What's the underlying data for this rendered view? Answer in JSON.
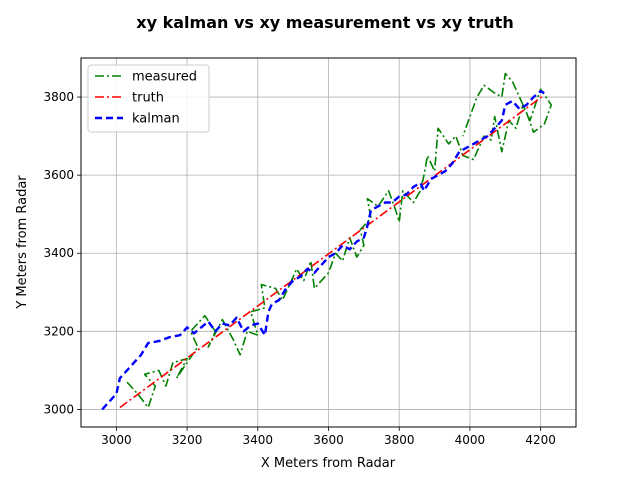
{
  "chart_data": {
    "type": "line",
    "title": "xy kalman vs xy measurement vs xy truth",
    "xlabel": "X Meters from Radar",
    "ylabel": "Y Meters from Radar",
    "xlim": [
      2900,
      4300
    ],
    "ylim": [
      2955,
      3900
    ],
    "xticks": [
      3000,
      3200,
      3400,
      3600,
      3800,
      4000,
      4200
    ],
    "yticks": [
      3000,
      3200,
      3400,
      3600,
      3800
    ],
    "grid": true,
    "legend_position": "upper-left",
    "series": [
      {
        "name": "measured",
        "color": "#008000",
        "linestyle": "dashdot",
        "points": [
          [
            3030,
            3070
          ],
          [
            3060,
            3040
          ],
          [
            3090,
            3005
          ],
          [
            3110,
            3060
          ],
          [
            3080,
            3090
          ],
          [
            3120,
            3100
          ],
          [
            3140,
            3060
          ],
          [
            3160,
            3120
          ],
          [
            3200,
            3130
          ],
          [
            3170,
            3080
          ],
          [
            3230,
            3160
          ],
          [
            3210,
            3200
          ],
          [
            3250,
            3240
          ],
          [
            3280,
            3200
          ],
          [
            3260,
            3160
          ],
          [
            3300,
            3230
          ],
          [
            3330,
            3180
          ],
          [
            3350,
            3140
          ],
          [
            3370,
            3200
          ],
          [
            3400,
            3190
          ],
          [
            3380,
            3250
          ],
          [
            3420,
            3260
          ],
          [
            3410,
            3320
          ],
          [
            3450,
            3310
          ],
          [
            3470,
            3280
          ],
          [
            3490,
            3320
          ],
          [
            3510,
            3360
          ],
          [
            3530,
            3330
          ],
          [
            3550,
            3380
          ],
          [
            3560,
            3310
          ],
          [
            3600,
            3350
          ],
          [
            3620,
            3400
          ],
          [
            3640,
            3380
          ],
          [
            3660,
            3440
          ],
          [
            3680,
            3390
          ],
          [
            3700,
            3420
          ],
          [
            3690,
            3460
          ],
          [
            3720,
            3490
          ],
          [
            3710,
            3540
          ],
          [
            3740,
            3520
          ],
          [
            3770,
            3560
          ],
          [
            3790,
            3510
          ],
          [
            3800,
            3480
          ],
          [
            3810,
            3560
          ],
          [
            3840,
            3530
          ],
          [
            3860,
            3560
          ],
          [
            3870,
            3600
          ],
          [
            3880,
            3650
          ],
          [
            3900,
            3610
          ],
          [
            3910,
            3720
          ],
          [
            3940,
            3680
          ],
          [
            3960,
            3700
          ],
          [
            3980,
            3650
          ],
          [
            4010,
            3640
          ],
          [
            4040,
            3700
          ],
          [
            4060,
            3690
          ],
          [
            4070,
            3750
          ],
          [
            4090,
            3660
          ],
          [
            4110,
            3740
          ],
          [
            4130,
            3720
          ],
          [
            4150,
            3780
          ],
          [
            4170,
            3740
          ],
          [
            4200,
            3820
          ],
          [
            4230,
            3780
          ],
          [
            4210,
            3730
          ],
          [
            4180,
            3710
          ],
          [
            4160,
            3760
          ],
          [
            4120,
            3840
          ],
          [
            4100,
            3860
          ],
          [
            4090,
            3800
          ],
          [
            4070,
            3810
          ],
          [
            4040,
            3830
          ],
          [
            4020,
            3800
          ],
          [
            4000,
            3750
          ],
          [
            3980,
            3700
          ]
        ]
      },
      {
        "name": "truth",
        "color": "#ff0000",
        "linestyle": "dashdot",
        "points": [
          [
            3010,
            3005
          ],
          [
            4210,
            3805
          ]
        ]
      },
      {
        "name": "kalman",
        "color": "#0000ff",
        "linestyle": "dashed",
        "points": [
          [
            2960,
            3000
          ],
          [
            3000,
            3040
          ],
          [
            3010,
            3080
          ],
          [
            3040,
            3110
          ],
          [
            3070,
            3140
          ],
          [
            3090,
            3170
          ],
          [
            3120,
            3175
          ],
          [
            3150,
            3185
          ],
          [
            3180,
            3190
          ],
          [
            3200,
            3210
          ],
          [
            3220,
            3195
          ],
          [
            3240,
            3210
          ],
          [
            3260,
            3225
          ],
          [
            3280,
            3200
          ],
          [
            3300,
            3220
          ],
          [
            3320,
            3215
          ],
          [
            3340,
            3235
          ],
          [
            3360,
            3200
          ],
          [
            3380,
            3215
          ],
          [
            3400,
            3220
          ],
          [
            3420,
            3190
          ],
          [
            3430,
            3250
          ],
          [
            3440,
            3270
          ],
          [
            3460,
            3280
          ],
          [
            3480,
            3310
          ],
          [
            3500,
            3330
          ],
          [
            3520,
            3340
          ],
          [
            3540,
            3360
          ],
          [
            3560,
            3350
          ],
          [
            3580,
            3370
          ],
          [
            3600,
            3390
          ],
          [
            3620,
            3400
          ],
          [
            3640,
            3420
          ],
          [
            3660,
            3410
          ],
          [
            3680,
            3430
          ],
          [
            3700,
            3440
          ],
          [
            3710,
            3470
          ],
          [
            3720,
            3510
          ],
          [
            3740,
            3520
          ],
          [
            3760,
            3530
          ],
          [
            3780,
            3530
          ],
          [
            3800,
            3545
          ],
          [
            3820,
            3550
          ],
          [
            3840,
            3570
          ],
          [
            3860,
            3580
          ],
          [
            3870,
            3560
          ],
          [
            3890,
            3590
          ],
          [
            3910,
            3600
          ],
          [
            3930,
            3610
          ],
          [
            3950,
            3630
          ],
          [
            3970,
            3660
          ],
          [
            3990,
            3670
          ],
          [
            4010,
            3680
          ],
          [
            4030,
            3690
          ],
          [
            4050,
            3700
          ],
          [
            4070,
            3720
          ],
          [
            4090,
            3740
          ],
          [
            4100,
            3780
          ],
          [
            4120,
            3790
          ],
          [
            4140,
            3770
          ],
          [
            4160,
            3780
          ],
          [
            4180,
            3800
          ],
          [
            4200,
            3815
          ],
          [
            4210,
            3810
          ]
        ]
      }
    ]
  }
}
